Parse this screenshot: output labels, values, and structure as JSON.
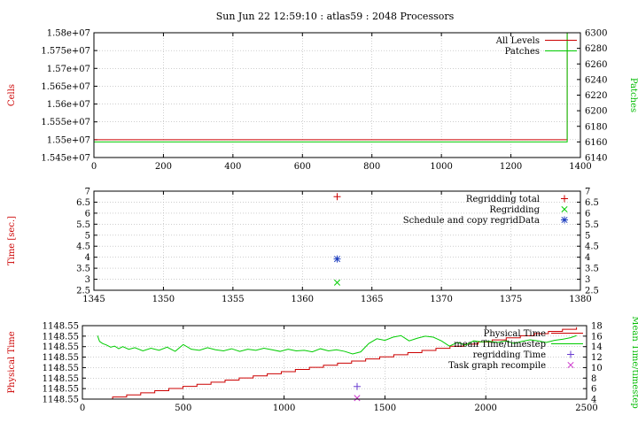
{
  "title": "Sun Jun 22 12:59:10 : atlas59 : 2048 Processors",
  "colors": {
    "red": "#cc0000",
    "green": "#00cc00",
    "blue": "#1f3fbf",
    "purple": "#6a3dd0",
    "magenta": "#cc33cc",
    "grid": "#b0b0b0"
  },
  "chart_data": [
    {
      "type": "line",
      "ylabel": "Cells",
      "y2label": "Patches",
      "xlim": [
        0,
        1400
      ],
      "ylim": [
        15450000,
        15800000
      ],
      "y2lim": [
        6140,
        6300
      ],
      "xticks": [
        "0",
        "200",
        "400",
        "600",
        "800",
        "1000",
        "1200",
        "1400"
      ],
      "yticks": [
        "1.545e+07",
        "1.55e+07",
        "1.555e+07",
        "1.56e+07",
        "1.565e+07",
        "1.57e+07",
        "1.575e+07",
        "1.58e+07"
      ],
      "y2ticks": [
        "6140",
        "6160",
        "6180",
        "6200",
        "6220",
        "6240",
        "6260",
        "6280",
        "6300"
      ],
      "legend_position": "top-right",
      "grid": true,
      "series": [
        {
          "name": "All Levels",
          "axis": "y",
          "color": "#cc0000",
          "x": [
            0,
            1362,
            1362
          ],
          "y": [
            15500000,
            15500000,
            15800000
          ]
        },
        {
          "name": "Patches",
          "axis": "y2",
          "color": "#00cc00",
          "x": [
            0,
            1362,
            1362
          ],
          "y": [
            6160,
            6160,
            6300
          ]
        }
      ]
    },
    {
      "type": "scatter",
      "ylabel": "Time [sec.]",
      "xlim": [
        1345,
        1380
      ],
      "ylim": [
        2.5,
        7
      ],
      "y2lim": [
        2.5,
        7
      ],
      "xticks": [
        "1345",
        "1350",
        "1355",
        "1360",
        "1365",
        "1370",
        "1375",
        "1380"
      ],
      "yticks": [
        "2.5",
        "3",
        "3.5",
        "4",
        "4.5",
        "5",
        "5.5",
        "6",
        "6.5",
        "7"
      ],
      "y2ticks": [
        "2.5",
        "3",
        "3.5",
        "4",
        "4.5",
        "5",
        "5.5",
        "6",
        "6.5",
        "7"
      ],
      "legend_position": "top-right",
      "grid": true,
      "series": [
        {
          "name": "Regridding total",
          "marker": "plus",
          "color": "#cc0000",
          "x": [
            1362.5
          ],
          "y": [
            6.75
          ]
        },
        {
          "name": "Regridding",
          "marker": "cross",
          "color": "#00cc00",
          "x": [
            1362.5
          ],
          "y": [
            2.85
          ]
        },
        {
          "name": "Schedule and copy regridData",
          "marker": "star",
          "color": "#1f3fbf",
          "x": [
            1362.5
          ],
          "y": [
            3.92
          ]
        }
      ]
    },
    {
      "type": "line",
      "ylabel": "Physical Time",
      "y2label": "Mean Time/timestep",
      "xlim": [
        0,
        2500
      ],
      "ylim": [
        0,
        7
      ],
      "y2lim": [
        4,
        18
      ],
      "xticks": [
        "0",
        "500",
        "1000",
        "1500",
        "2000",
        "2500"
      ],
      "yticks": [
        "1148.55",
        "1148.55",
        "1148.55",
        "1148.55",
        "1148.55",
        "1148.55",
        "1148.55",
        "1148.55"
      ],
      "y2ticks": [
        "4",
        "6",
        "8",
        "10",
        "12",
        "14",
        "16",
        "18"
      ],
      "legend_position": "top-right",
      "grid": true,
      "series": [
        {
          "name": "Physical Time",
          "axis": "y",
          "color": "#cc0000",
          "x": [
            80,
            2450
          ],
          "y": [
            0,
            6.85
          ],
          "style": "staircase"
        },
        {
          "name": "mean Time/timestep",
          "axis": "y2",
          "color": "#00cc00",
          "x": [
            75,
            85,
            100,
            120,
            140,
            160,
            180,
            200,
            230,
            260,
            300,
            340,
            380,
            420,
            460,
            500,
            540,
            580,
            620,
            660,
            700,
            740,
            780,
            820,
            860,
            900,
            940,
            980,
            1020,
            1060,
            1100,
            1140,
            1180,
            1220,
            1260,
            1300,
            1340,
            1380,
            1420,
            1460,
            1500,
            1540,
            1580,
            1620,
            1660,
            1700,
            1740,
            1780,
            1820,
            1860,
            1900,
            1940,
            1980,
            2020,
            2060,
            2100,
            2140,
            2180,
            2220,
            2260,
            2300,
            2340,
            2380,
            2420,
            2450
          ],
          "y": [
            16.1,
            15.0,
            14.6,
            14.3,
            13.9,
            14.1,
            13.6,
            14.0,
            13.5,
            13.8,
            13.2,
            13.7,
            13.3,
            13.9,
            13.1,
            14.4,
            13.5,
            13.3,
            13.8,
            13.4,
            13.2,
            13.6,
            13.1,
            13.5,
            13.3,
            13.7,
            13.4,
            13.1,
            13.5,
            13.2,
            13.3,
            13.0,
            13.6,
            13.2,
            13.4,
            13.1,
            12.6,
            13.0,
            14.6,
            15.5,
            15.2,
            15.8,
            16.1,
            15.1,
            15.6,
            16.0,
            15.8,
            15.1,
            14.1,
            14.8,
            14.3,
            15.1,
            14.9,
            15.0,
            14.8,
            15.1,
            14.6,
            15.0,
            15.3,
            15.1,
            14.8,
            15.2,
            15.4,
            15.7,
            16.1
          ]
        },
        {
          "name": "regridding Time",
          "marker": "plus",
          "color": "#6a3dd0",
          "x": [
            1362
          ],
          "y": [
            1.2
          ]
        },
        {
          "name": "Task graph recompile",
          "marker": "cross",
          "color": "#cc33cc",
          "x": [
            1362
          ],
          "y": [
            0.1
          ]
        }
      ]
    }
  ]
}
